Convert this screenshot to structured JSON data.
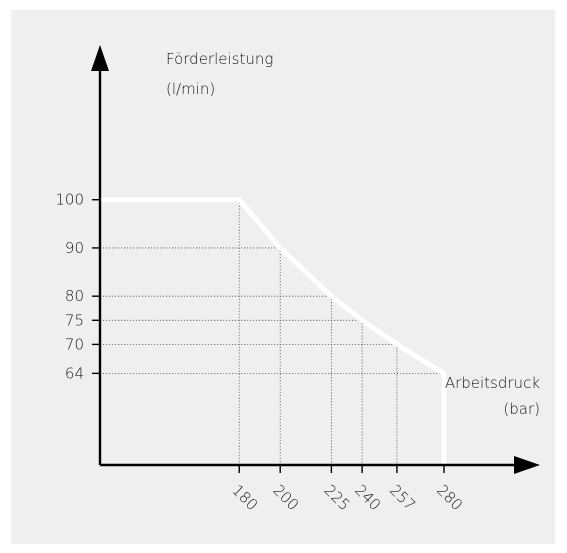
{
  "chart_data": {
    "type": "line",
    "ylabel": [
      "Förderleistung",
      "(l/min)"
    ],
    "xlabel": [
      "Arbeitsdruck",
      "(bar)"
    ],
    "xlim": [
      112,
      322
    ],
    "ylim": [
      45,
      130
    ],
    "yticks": [
      64,
      70,
      75,
      80,
      90,
      100
    ],
    "xticks": [
      180,
      200,
      225,
      240,
      257,
      280
    ],
    "series": [
      {
        "x": [
          112,
          180,
          200,
          225,
          240,
          257,
          280,
          280
        ],
        "y": [
          100,
          100,
          90,
          80,
          75,
          70,
          64,
          45
        ]
      }
    ],
    "reference_points": [
      {
        "x": 180,
        "y": 100
      },
      {
        "x": 200,
        "y": 90
      },
      {
        "x": 225,
        "y": 80
      },
      {
        "x": 240,
        "y": 75
      },
      {
        "x": 257,
        "y": 70
      },
      {
        "x": 280,
        "y": 64
      }
    ],
    "colors": {
      "background": "#efefef",
      "curve": "#ffffff",
      "axis": "#000000",
      "guides": "#555555"
    }
  }
}
